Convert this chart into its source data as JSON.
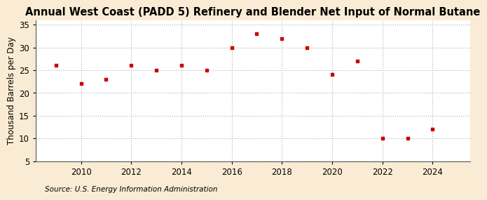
{
  "title": "Annual West Coast (PADD 5) Refinery and Blender Net Input of Normal Butane",
  "ylabel": "Thousand Barrels per Day",
  "source": "Source: U.S. Energy Information Administration",
  "background_color": "#faecd4",
  "plot_bg_color": "#ffffff",
  "marker_color": "#cc0000",
  "x_data": [
    2009,
    2010,
    2011,
    2012,
    2013,
    2014,
    2015,
    2016,
    2017,
    2018,
    2019,
    2020,
    2021,
    2022,
    2023,
    2024
  ],
  "y_data": [
    26.0,
    22.0,
    23.0,
    26.0,
    25.0,
    26.0,
    25.0,
    30.0,
    33.0,
    32.0,
    30.0,
    24.0,
    27.0,
    10.0,
    10.0,
    12.0
  ],
  "xlim": [
    2008.2,
    2025.5
  ],
  "ylim": [
    5,
    36
  ],
  "yticks": [
    5,
    10,
    15,
    20,
    25,
    30,
    35
  ],
  "xticks": [
    2010,
    2012,
    2014,
    2016,
    2018,
    2020,
    2022,
    2024
  ],
  "title_fontsize": 10.5,
  "ylabel_fontsize": 8.5,
  "tick_fontsize": 8.5,
  "source_fontsize": 7.5
}
